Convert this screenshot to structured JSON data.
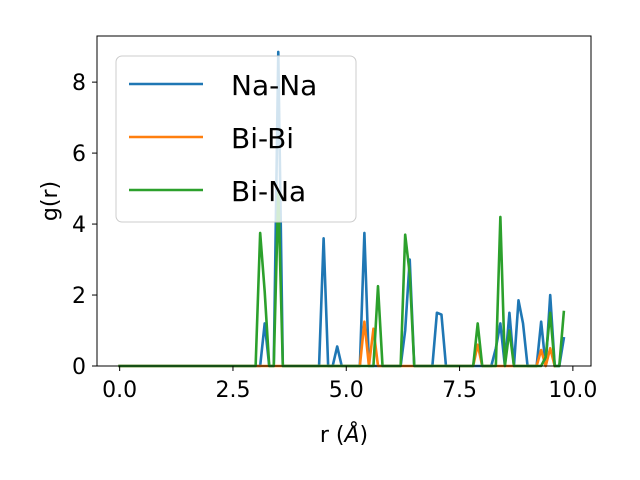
{
  "chart_data": {
    "type": "line",
    "xlabel": "r (",
    "xlabel_unit": "Å",
    "xlabel_close": ")",
    "ylabel": "g(r)",
    "xlim": [
      -0.5,
      10.4
    ],
    "ylim": [
      0,
      9.3
    ],
    "x_ticks": [
      0.0,
      2.5,
      5.0,
      7.5,
      10.0
    ],
    "x_tick_labels": [
      "0.0",
      "2.5",
      "5.0",
      "7.5",
      "10.0"
    ],
    "y_ticks": [
      0,
      2,
      4,
      6,
      8
    ],
    "y_tick_labels": [
      "0",
      "2",
      "4",
      "6",
      "8"
    ],
    "grid": false,
    "legend_position": "top-left",
    "series": [
      {
        "name": "Na-Na",
        "color": "#1f77b4",
        "points": [
          [
            0,
            0
          ],
          [
            3.1,
            0
          ],
          [
            3.2,
            1.2
          ],
          [
            3.3,
            0
          ],
          [
            3.4,
            0
          ],
          [
            3.5,
            8.85
          ],
          [
            3.6,
            0
          ],
          [
            4.4,
            0
          ],
          [
            4.5,
            3.6
          ],
          [
            4.6,
            0
          ],
          [
            4.7,
            0
          ],
          [
            4.8,
            0.55
          ],
          [
            4.9,
            0
          ],
          [
            5.3,
            0
          ],
          [
            5.4,
            3.75
          ],
          [
            5.5,
            0
          ],
          [
            6.2,
            0
          ],
          [
            6.3,
            1.0
          ],
          [
            6.4,
            3.0
          ],
          [
            6.5,
            0
          ],
          [
            6.9,
            0
          ],
          [
            7.0,
            1.5
          ],
          [
            7.1,
            1.45
          ],
          [
            7.2,
            0
          ],
          [
            8.2,
            0
          ],
          [
            8.3,
            0.5
          ],
          [
            8.4,
            1.2
          ],
          [
            8.5,
            0
          ],
          [
            8.6,
            1.5
          ],
          [
            8.7,
            0
          ],
          [
            8.8,
            1.85
          ],
          [
            8.9,
            1.2
          ],
          [
            9.0,
            0
          ],
          [
            9.2,
            0
          ],
          [
            9.3,
            1.25
          ],
          [
            9.4,
            0
          ],
          [
            9.5,
            2.0
          ],
          [
            9.6,
            0
          ],
          [
            9.7,
            0
          ],
          [
            9.8,
            0.78
          ]
        ]
      },
      {
        "name": "Bi-Bi",
        "color": "#ff7f0e",
        "points": [
          [
            0,
            0
          ],
          [
            5.3,
            0
          ],
          [
            5.4,
            1.25
          ],
          [
            5.5,
            0
          ],
          [
            5.6,
            1.05
          ],
          [
            5.7,
            0
          ],
          [
            7.8,
            0
          ],
          [
            7.9,
            0.6
          ],
          [
            8.0,
            0
          ],
          [
            9.2,
            0
          ],
          [
            9.3,
            0.45
          ],
          [
            9.4,
            0
          ],
          [
            9.5,
            0.5
          ],
          [
            9.6,
            0
          ]
        ]
      },
      {
        "name": "Bi-Na",
        "color": "#2ca02c",
        "points": [
          [
            0,
            0
          ],
          [
            3.0,
            0
          ],
          [
            3.1,
            3.75
          ],
          [
            3.2,
            2.1
          ],
          [
            3.3,
            0
          ],
          [
            3.4,
            0
          ],
          [
            3.5,
            4.9
          ],
          [
            3.6,
            0
          ],
          [
            5.6,
            0
          ],
          [
            5.7,
            2.25
          ],
          [
            5.8,
            0
          ],
          [
            6.2,
            0
          ],
          [
            6.3,
            3.7
          ],
          [
            6.4,
            2.6
          ],
          [
            6.5,
            0
          ],
          [
            7.8,
            0
          ],
          [
            7.9,
            1.2
          ],
          [
            8.0,
            0
          ],
          [
            8.3,
            0
          ],
          [
            8.4,
            4.2
          ],
          [
            8.5,
            0
          ],
          [
            8.6,
            1.0
          ],
          [
            8.7,
            0
          ],
          [
            9.3,
            0
          ],
          [
            9.4,
            0.25
          ],
          [
            9.5,
            1.5
          ],
          [
            9.6,
            0
          ],
          [
            9.7,
            0
          ],
          [
            9.8,
            1.52
          ]
        ]
      }
    ]
  }
}
